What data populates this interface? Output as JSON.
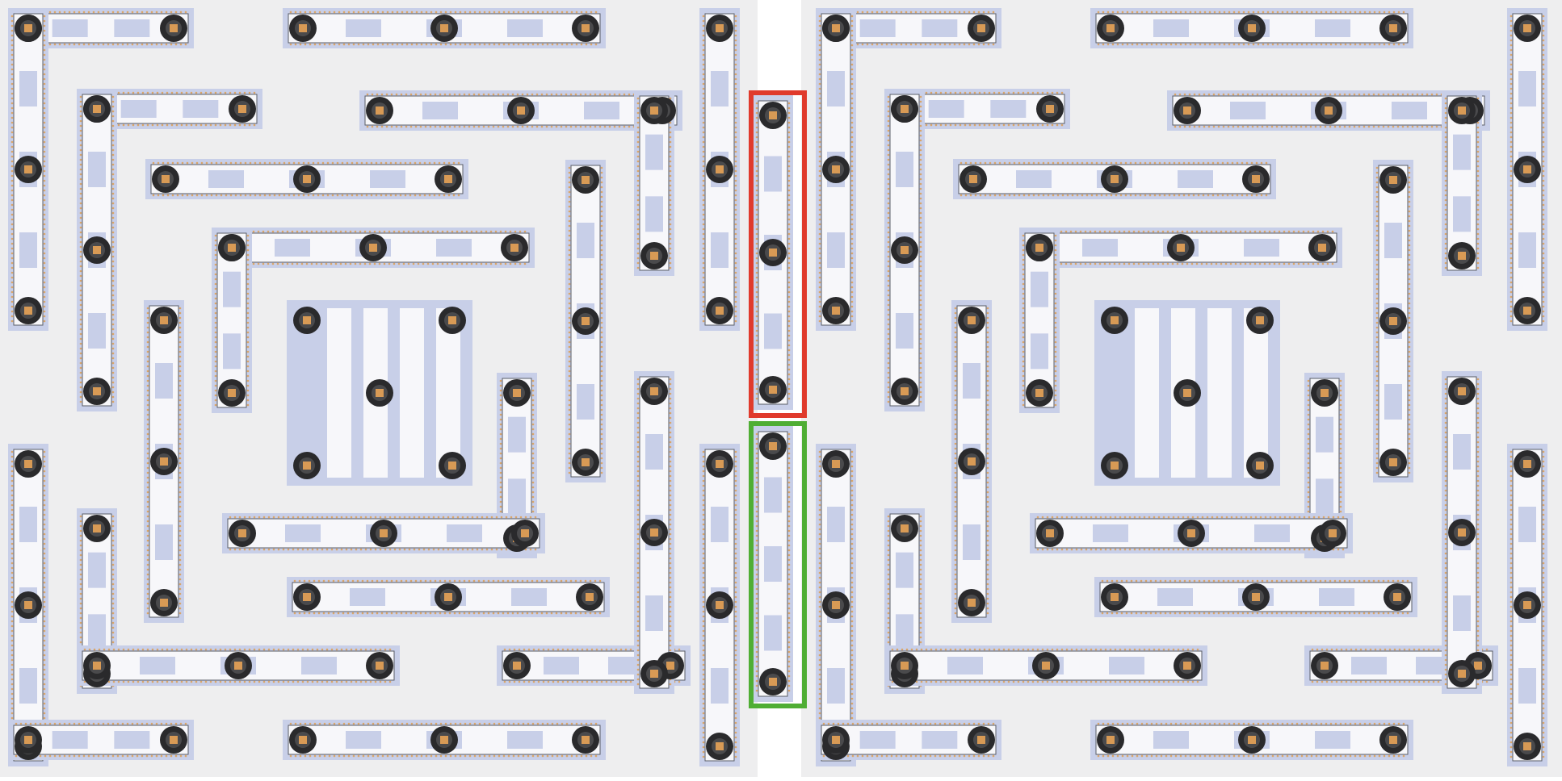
{
  "colors": {
    "background": "#ffffff",
    "panel": "#eeeeef",
    "strip_fill": "#c8cfe8",
    "strip_inner": "#f7f7fa",
    "strip_outline": "#5a5c66",
    "led": "#d9a56a",
    "mount_outer": "#2a2a2c",
    "mount_ring": "#4a4a4c",
    "mount_core": "#d89a55",
    "highlight_red": "#e03a2c",
    "highlight_green": "#4fae34"
  },
  "icons": {
    "mount": "screw-mount-icon",
    "led": "led-dot-icon"
  },
  "highlights": [
    {
      "name": "red-highlight-box",
      "color_key": "highlight_red"
    },
    {
      "name": "green-highlight-box",
      "color_key": "highlight_green"
    }
  ]
}
